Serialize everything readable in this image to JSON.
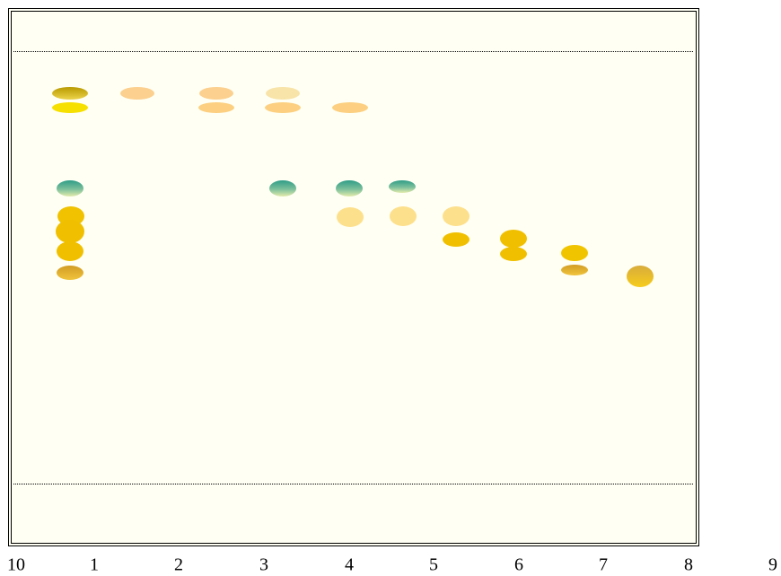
{
  "lane_labels": [
    "10",
    "1",
    "2",
    "3",
    "4",
    "5",
    "6",
    "7",
    "8",
    "9"
  ]
}
